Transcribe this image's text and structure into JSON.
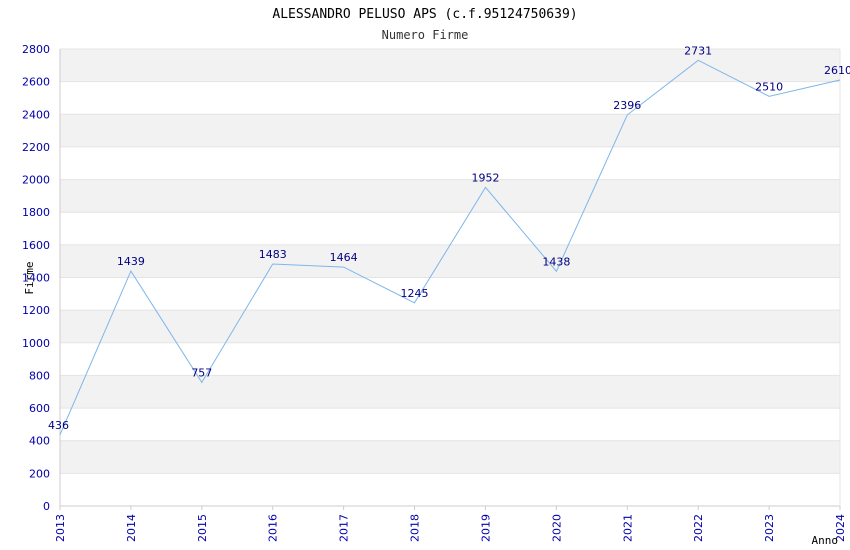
{
  "chart_data": {
    "type": "line",
    "title": "ALESSANDRO PELUSO APS (c.f.95124750639)",
    "subtitle": "Numero Firme",
    "xlabel": "Anno",
    "ylabel": "Firme",
    "x": [
      "2013",
      "2014",
      "2015",
      "2016",
      "2017",
      "2018",
      "2019",
      "2020",
      "2021",
      "2022",
      "2023",
      "2024"
    ],
    "series": [
      {
        "values": [
          436,
          1439,
          757,
          1483,
          1464,
          1245,
          1952,
          1438,
          2396,
          2731,
          2510,
          2610
        ]
      }
    ],
    "ylim": [
      0,
      2800
    ],
    "yticks": [
      0,
      200,
      400,
      600,
      800,
      1000,
      1200,
      1400,
      1600,
      1800,
      2000,
      2200,
      2400,
      2600,
      2800
    ],
    "grid": true,
    "colors": {
      "line": "#7eb6ea",
      "band": "#f2f2f2",
      "tick_text": "#0000aa",
      "data_label": "#000080",
      "axis": "#cccccc"
    }
  }
}
